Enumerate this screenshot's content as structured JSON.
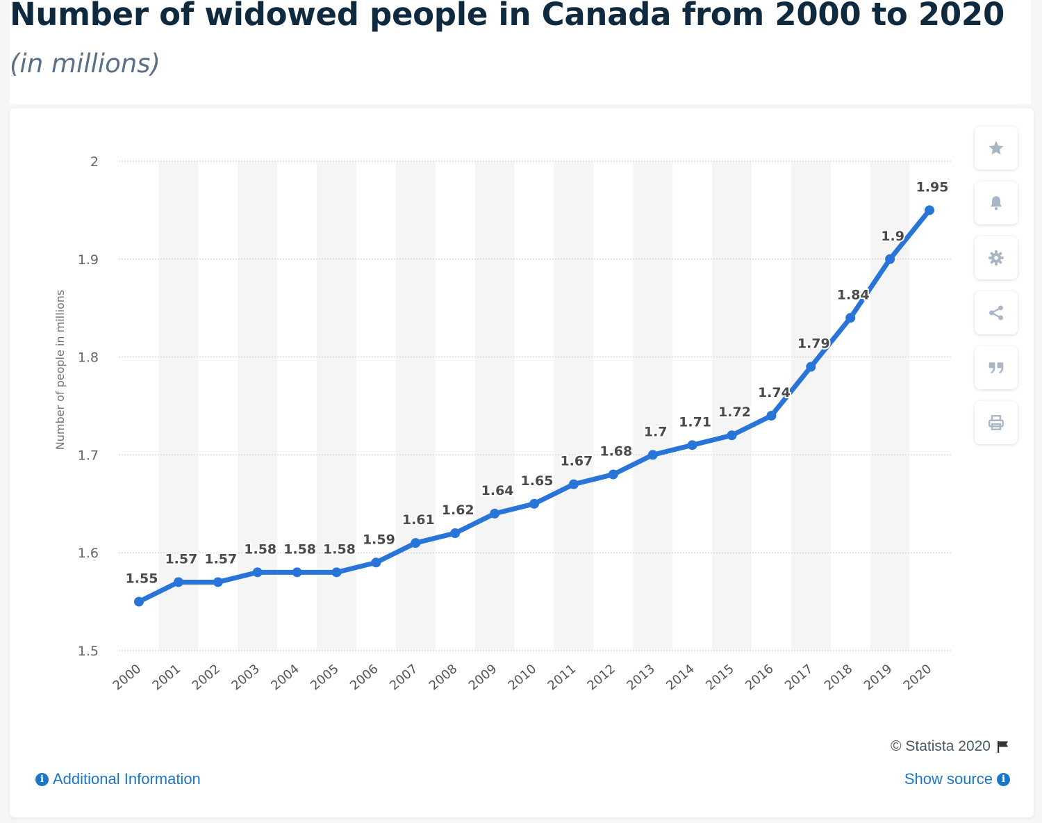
{
  "header": {
    "title": "Number of widowed people in Canada from 2000 to 2020",
    "subtitle": "(in millions)"
  },
  "colors": {
    "line": "#2874d9",
    "stripe": "#f5f5f5",
    "grid": "#c9c9c9",
    "label": "#4a4a4a"
  },
  "toolbar": {
    "icons": [
      "star-icon",
      "bell-icon",
      "gear-icon",
      "share-icon",
      "quote-icon",
      "print-icon"
    ]
  },
  "footer": {
    "copyright": "© Statista 2020",
    "additional_info": "Additional Information",
    "show_source": "Show source"
  },
  "chart_data": {
    "type": "line",
    "title": "Number of widowed people in Canada from 2000 to 2020",
    "subtitle": "(in millions)",
    "xlabel": "",
    "ylabel": "Number of people in millions",
    "ylim": [
      1.5,
      2
    ],
    "yticks": [
      "1.5",
      "1.6",
      "1.7",
      "1.8",
      "1.9",
      "2"
    ],
    "grid": true,
    "legend": "none",
    "categories": [
      "2000",
      "2001",
      "2002",
      "2003",
      "2004",
      "2005",
      "2006",
      "2007",
      "2008",
      "2009",
      "2010",
      "2011",
      "2012",
      "2013",
      "2014",
      "2015",
      "2016",
      "2017",
      "2018",
      "2019",
      "2020"
    ],
    "series": [
      {
        "values": [
          1.55,
          1.57,
          1.57,
          1.58,
          1.58,
          1.58,
          1.59,
          1.61,
          1.62,
          1.64,
          1.65,
          1.67,
          1.68,
          1.7,
          1.71,
          1.72,
          1.74,
          1.79,
          1.84,
          1.9,
          1.95
        ],
        "labels": [
          "1.55",
          "1.57",
          "1.57",
          "1.58",
          "1.58",
          "1.58",
          "1.59",
          "1.61",
          "1.62",
          "1.64",
          "1.65",
          "1.67",
          "1.68",
          "1.7",
          "1.71",
          "1.72",
          "1.74",
          "1.79",
          "1.84",
          "1.9",
          "1.95"
        ]
      }
    ]
  }
}
